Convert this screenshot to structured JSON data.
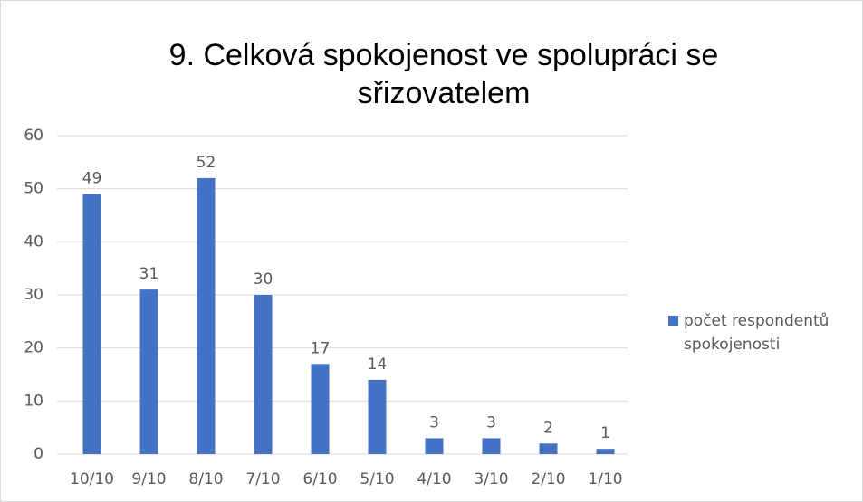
{
  "chart_data": {
    "type": "bar",
    "title": "9. Celková spokojenost ve spolupráci se sřizovatelem",
    "categories": [
      "10/10",
      "9/10",
      "8/10",
      "7/10",
      "6/10",
      "5/10",
      "4/10",
      "3/10",
      "2/10",
      "1/10"
    ],
    "series": [
      {
        "name": "počet respondentů spokojenosti",
        "color": "#4472c4",
        "values": [
          49,
          31,
          52,
          30,
          17,
          14,
          3,
          3,
          2,
          1
        ]
      }
    ],
    "ylim": [
      0,
      60
    ],
    "yticks": [
      0,
      10,
      20,
      30,
      40,
      50,
      60
    ],
    "grid": true,
    "legend": "right"
  }
}
